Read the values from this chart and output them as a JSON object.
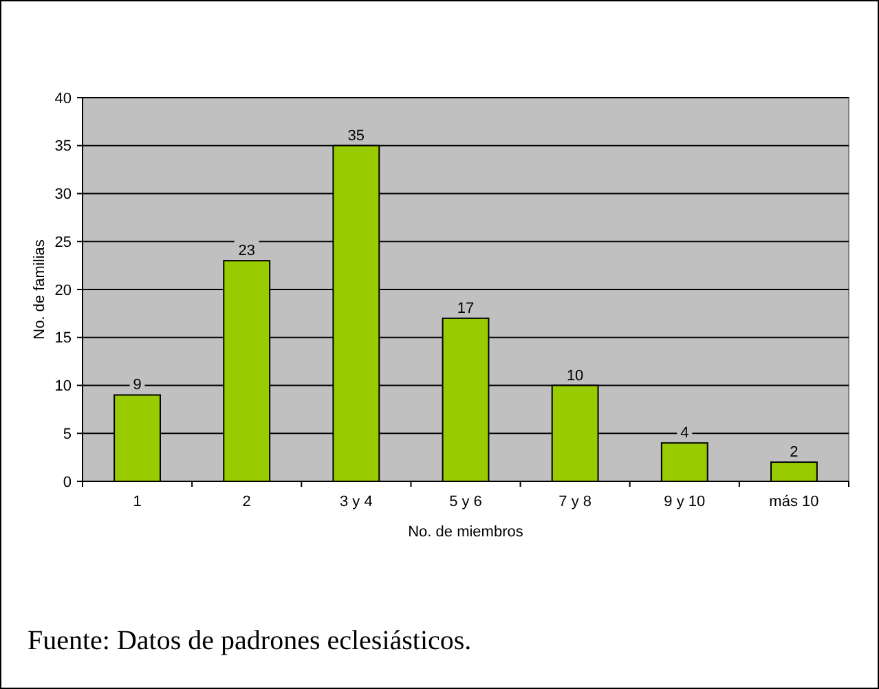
{
  "chart_data": {
    "type": "bar",
    "xlabel": "No. de miembros",
    "ylabel": "No. de familias",
    "categories": [
      "1",
      "2",
      "3 y 4",
      "5 y 6",
      "7 y 8",
      "9 y 10",
      "más 10"
    ],
    "values": [
      9,
      23,
      35,
      17,
      10,
      4,
      2
    ],
    "color": "#99cc00",
    "ylim": [
      0,
      40
    ],
    "yticks": [
      0,
      5,
      10,
      15,
      20,
      25,
      30,
      35,
      40
    ],
    "grid": "y",
    "data_labels": true,
    "annotations": [
      "Fuente: Datos de padrones eclesiásticos."
    ]
  }
}
